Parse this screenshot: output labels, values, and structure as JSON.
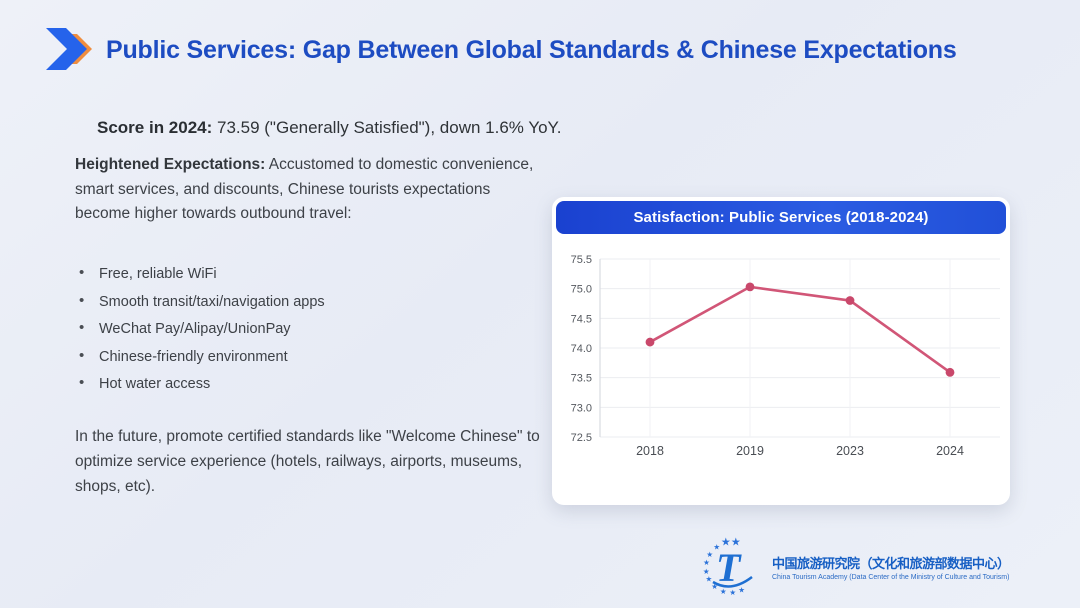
{
  "slide": {
    "title": "Public Services: Gap Between Global Standards & Chinese Expectations",
    "score_line": {
      "lead": "Score in 2024:",
      "rest": " 73.59 (\"Generally Satisfied\"), down 1.6% YoY."
    },
    "expectations": {
      "lead": "Heightened Expectations:",
      "rest": " Accustomed to domestic convenience, smart services, and discounts, Chinese tourists expectations become higher towards outbound travel:"
    },
    "bullets": [
      "Free, reliable WiFi",
      "Smooth transit/taxi/navigation apps",
      "WeChat Pay/Alipay/UnionPay",
      "Chinese-friendly environment",
      "Hot water access"
    ],
    "future": "In the future, promote certified standards like \"Welcome Chinese\" to optimize service experience (hotels, railways, airports, museums, shops, etc)."
  },
  "chart_data": {
    "type": "line",
    "title": "Satisfaction: Public Services (2018-2024)",
    "categories": [
      "2018",
      "2019",
      "2023",
      "2024"
    ],
    "values": [
      74.1,
      75.03,
      74.8,
      73.59
    ],
    "xlabel": "",
    "ylabel": "",
    "ylim": [
      72.5,
      75.5
    ],
    "ytick_step": 0.5,
    "grid": true,
    "legend": false,
    "line_color": "#d15677",
    "marker_color": "#c9486b",
    "header_bg": "#2150d8"
  },
  "footer": {
    "org_cn": "中国旅游研究院（文化和旅游部数据中心）",
    "org_en": "China Tourism Academy (Data Center of the Ministry of Culture and Tourism)"
  },
  "icons": {
    "title_icon": "double-chevron-right",
    "title_icon_colors": [
      "#ef8d3f",
      "#2563eb"
    ],
    "logo_icon": "china-tourism-academy-emblem"
  },
  "colors": {
    "title_blue": "#1d4cc2",
    "body_text": "#3d4147",
    "background": "#eaeef7",
    "card_bg": "#ffffff"
  }
}
